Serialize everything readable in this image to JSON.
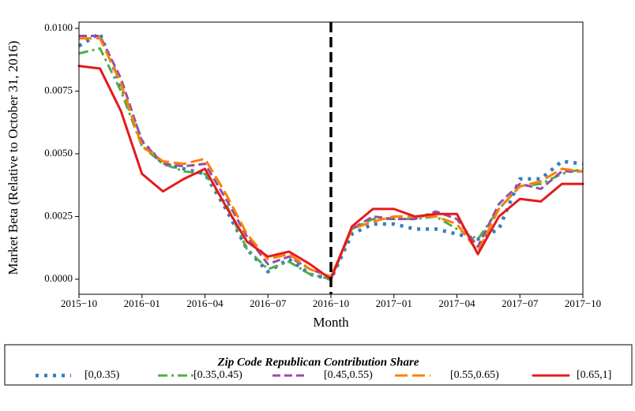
{
  "chart_data": {
    "type": "line",
    "xlabel": "Month",
    "ylabel": "Market Beta (Relative to October 31, 2016)",
    "legend_title": "Zip Code Republican Contribution Share",
    "legend": "below",
    "vline": "2016-10",
    "x": [
      "2015-10",
      "2015-11",
      "2015-12",
      "2016-01",
      "2016-02",
      "2016-03",
      "2016-04",
      "2016-05",
      "2016-06",
      "2016-07",
      "2016-08",
      "2016-09",
      "2016-10",
      "2016-11",
      "2016-12",
      "2017-01",
      "2017-02",
      "2017-03",
      "2017-04",
      "2017-05",
      "2017-06",
      "2017-07",
      "2017-08",
      "2017-09",
      "2017-10"
    ],
    "xlim": [
      "2015-10",
      "2017-10"
    ],
    "xticks": [
      {
        "value": "2015-10",
        "label": "2015−10"
      },
      {
        "value": "2016-01",
        "label": "2016−01"
      },
      {
        "value": "2016-04",
        "label": "2016−04"
      },
      {
        "value": "2016-07",
        "label": "2016−07"
      },
      {
        "value": "2016-10",
        "label": "2016−10"
      },
      {
        "value": "2017-01",
        "label": "2017−01"
      },
      {
        "value": "2017-04",
        "label": "2017−04"
      },
      {
        "value": "2017-07",
        "label": "2017−07"
      },
      {
        "value": "2017-10",
        "label": "2017−10"
      }
    ],
    "ylim": [
      -0.0006,
      0.01025
    ],
    "yticks": [
      {
        "value": 0,
        "label": "0.0000"
      },
      0.0025,
      {
        "value": 0.005,
        "label": "0.0050"
      },
      0.0075,
      {
        "value": 0.01,
        "label": "0.0100"
      }
    ],
    "series": [
      {
        "name": "[0,0.35)",
        "color": "#377eb8",
        "linestyle": "dotted",
        "values": [
          0.0093,
          0.0098,
          0.0077,
          0.0055,
          0.0046,
          0.0044,
          0.0042,
          0.0028,
          0.0012,
          0.0003,
          0.0008,
          0.0002,
          0.0,
          0.0018,
          0.0022,
          0.0022,
          0.002,
          0.002,
          0.0018,
          0.0016,
          0.002,
          0.004,
          0.004,
          0.0047,
          0.0046
        ]
      },
      {
        "name": "[0.35,0.45)",
        "color": "#4daf4a",
        "linestyle": "dashdot",
        "values": [
          0.009,
          0.0092,
          0.0075,
          0.0053,
          0.0046,
          0.0043,
          0.0042,
          0.003,
          0.0012,
          0.0004,
          0.0007,
          0.0002,
          0.0,
          0.002,
          0.0024,
          0.0024,
          0.0024,
          0.0025,
          0.002,
          0.0016,
          0.0028,
          0.0037,
          0.0038,
          0.0042,
          0.0044
        ]
      },
      {
        "name": "[0.45,0.55)",
        "color": "#984ea3",
        "linestyle": "dashed",
        "values": [
          0.0097,
          0.0097,
          0.008,
          0.0055,
          0.0046,
          0.0045,
          0.0046,
          0.0032,
          0.0017,
          0.0006,
          0.0009,
          0.0004,
          0.0001,
          0.002,
          0.0025,
          0.0024,
          0.0024,
          0.0027,
          0.0024,
          0.0013,
          0.003,
          0.0038,
          0.0036,
          0.0043,
          0.0043
        ]
      },
      {
        "name": "[0.55,0.65)",
        "color": "#ff7f00",
        "linestyle": "longdash",
        "values": [
          0.0096,
          0.0096,
          0.0078,
          0.0053,
          0.0047,
          0.0046,
          0.0048,
          0.0034,
          0.0018,
          0.0008,
          0.001,
          0.0004,
          0.0001,
          0.002,
          0.0023,
          0.0025,
          0.0025,
          0.0025,
          0.0022,
          0.0011,
          0.0028,
          0.0037,
          0.0039,
          0.0044,
          0.0043
        ]
      },
      {
        "name": "[0.65,1]",
        "color": "#e41a1c",
        "linestyle": "solid",
        "values": [
          0.0085,
          0.0084,
          0.0067,
          0.0042,
          0.0035,
          0.004,
          0.0044,
          0.0029,
          0.0015,
          0.0009,
          0.0011,
          0.0006,
          0.0,
          0.0021,
          0.0028,
          0.0028,
          0.0025,
          0.0026,
          0.0026,
          0.001,
          0.0025,
          0.0032,
          0.0031,
          0.0038,
          0.0038
        ]
      }
    ]
  }
}
